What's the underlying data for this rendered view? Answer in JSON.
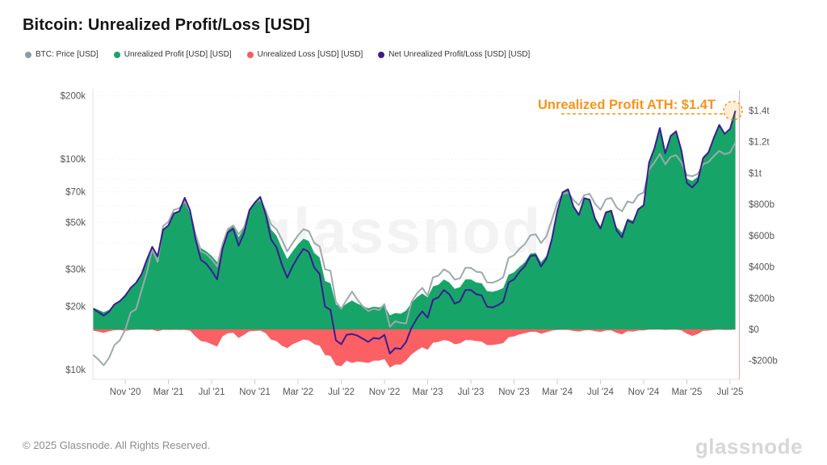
{
  "page": {
    "title": "Bitcoin: Unrealized Profit/Loss [USD]",
    "watermark": "glassnode",
    "footer_left": "© 2025 Glassnode. All Rights Reserved.",
    "footer_logo": "glassnode"
  },
  "legend": [
    {
      "label": "BTC: Price [USD]",
      "color": "#8E9BA1"
    },
    {
      "label": "Unrealized Profit [USD] [USD]",
      "color": "#17A469"
    },
    {
      "label": "Unrealized Loss [USD] [USD]",
      "color": "#FA5B5E"
    },
    {
      "label": "Net Unrealized Profit/Loss [USD] [USD]",
      "color": "#3A1D8F"
    }
  ],
  "annotation": {
    "text": "Unrealized Profit ATH: $1.4T",
    "color": "#F7931A",
    "value_b": 1400
  },
  "colors": {
    "price_line": "#9FA9AD",
    "profit_fill": "#17A469",
    "loss_fill": "#FA6064",
    "net_line": "#3A1D8F",
    "grid": "#EBEBEB",
    "axis_text": "#555555",
    "axis_line": "#E3E3E3",
    "tick": "#CFCFCF",
    "cursor_line": "#F7A6A6",
    "watermark": "#111111"
  },
  "chart_data": {
    "type": "area+line",
    "title": "Bitcoin: Unrealized Profit/Loss [USD]",
    "x_unit": "months since Aug 2020 (step 0.5, Aug '20 → mid-Jul '25)",
    "x_start": 0,
    "x_step": 0.5,
    "x_tick_labels": [
      "Nov '20",
      "Mar '21",
      "Jul '21",
      "Nov '21",
      "Mar '22",
      "Jul '22",
      "Nov '22",
      "Mar '23",
      "Jul '23",
      "Nov '23",
      "Mar '24",
      "Jul '24",
      "Nov '24",
      "Mar '25",
      "Jul '25"
    ],
    "x_tick_t": [
      3,
      7,
      11,
      15,
      19,
      23,
      27,
      31,
      35,
      39,
      43,
      47,
      51,
      55,
      59
    ],
    "left_axis": {
      "scale": "log",
      "unit": "USD",
      "ticks": [
        {
          "label": "$200k",
          "v": 200
        },
        {
          "label": "$100k",
          "v": 100
        },
        {
          "label": "$70k",
          "v": 70
        },
        {
          "label": "$50k",
          "v": 50
        },
        {
          "label": "$30k",
          "v": 30
        },
        {
          "label": "$20k",
          "v": 20
        },
        {
          "label": "$10k",
          "v": 10
        }
      ],
      "minor_grid": [
        20,
        30,
        40,
        50,
        60,
        70,
        80,
        90,
        100,
        200
      ]
    },
    "right_axis": {
      "scale": "linear",
      "unit": "USD billions",
      "ticks": [
        {
          "label": "$1.4t",
          "v": 1400
        },
        {
          "label": "$1.2t",
          "v": 1200
        },
        {
          "label": "$1t",
          "v": 1000
        },
        {
          "label": "$800b",
          "v": 800
        },
        {
          "label": "$600b",
          "v": 600
        },
        {
          "label": "$400b",
          "v": 400
        },
        {
          "label": "$200b",
          "v": 200
        },
        {
          "label": "$0",
          "v": 0
        },
        {
          "label": "-$200b",
          "v": -200
        }
      ]
    },
    "series": [
      {
        "name": "BTC: Price [USD]",
        "axis": "left",
        "type": "line",
        "unit": "$k",
        "values": [
          11.8,
          11.2,
          10.5,
          11.4,
          13.1,
          13.8,
          15.5,
          18.7,
          19.4,
          23.8,
          29.0,
          37.5,
          32.5,
          48.0,
          50.5,
          57.5,
          58.5,
          63.0,
          56.5,
          44.0,
          36.5,
          35.5,
          33.5,
          31.0,
          39.5,
          46.5,
          48.5,
          44.0,
          47.5,
          57.5,
          62.0,
          64.5,
          57.0,
          49.0,
          46.5,
          41.5,
          36.5,
          40.0,
          43.5,
          46.5,
          45.5,
          40.0,
          38.5,
          30.0,
          29.5,
          21.0,
          19.5,
          21.5,
          23.5,
          21.5,
          20.0,
          19.0,
          19.5,
          19.2,
          20.5,
          16.0,
          17.0,
          16.7,
          16.6,
          21.0,
          23.0,
          24.5,
          22.5,
          27.5,
          28.0,
          30.0,
          29.0,
          26.8,
          27.2,
          30.5,
          30.5,
          29.2,
          29.0,
          26.0,
          25.9,
          26.5,
          27.5,
          34.0,
          35.0,
          37.5,
          39.5,
          43.5,
          44.0,
          40.0,
          43.0,
          51.5,
          62.0,
          68.5,
          69.5,
          64.0,
          60.5,
          67.5,
          68.5,
          61.5,
          57.5,
          64.5,
          65.5,
          59.0,
          56.5,
          63.0,
          62.0,
          67.5,
          69.5,
          89.5,
          96.5,
          106.0,
          94.5,
          102.5,
          104.5,
          96.5,
          84.0,
          83.0,
          85.0,
          94.5,
          97.0,
          103.5,
          109.5,
          105.5,
          107.5,
          120.0
        ]
      },
      {
        "name": "Unrealized Profit [USD] [USD]",
        "axis": "right",
        "type": "area",
        "unit": "$b",
        "values": [
          140,
          125,
          110,
          125,
          165,
          185,
          225,
          270,
          300,
          355,
          450,
          530,
          480,
          640,
          670,
          745,
          760,
          845,
          770,
          625,
          520,
          500,
          470,
          430,
          560,
          645,
          665,
          590,
          650,
          775,
          820,
          855,
          760,
          640,
          600,
          520,
          450,
          500,
          545,
          580,
          565,
          490,
          460,
          310,
          295,
          160,
          140,
          165,
          185,
          165,
          150,
          135,
          145,
          140,
          155,
          90,
          105,
          100,
          120,
          170,
          205,
          230,
          205,
          275,
          285,
          320,
          300,
          260,
          270,
          320,
          320,
          300,
          295,
          245,
          240,
          250,
          265,
          350,
          365,
          400,
          430,
          485,
          490,
          430,
          470,
          585,
          760,
          880,
          900,
          795,
          745,
          845,
          835,
          720,
          660,
          755,
          765,
          655,
          620,
          710,
          695,
          775,
          800,
          1070,
          1160,
          1290,
          1130,
          1240,
          1270,
          1150,
          965,
          950,
          975,
          1105,
          1140,
          1230,
          1310,
          1255,
          1285,
          1400
        ]
      },
      {
        "name": "Unrealized Loss [USD] [USD]",
        "axis": "right",
        "type": "area",
        "unit": "$b",
        "values": [
          -8,
          -14,
          -22,
          -12,
          -5,
          -4,
          -10,
          -4,
          -2,
          -2,
          -3,
          -2,
          -12,
          -3,
          -4,
          -3,
          -4,
          -3,
          -8,
          -45,
          -75,
          -80,
          -95,
          -110,
          -45,
          -25,
          -22,
          -55,
          -35,
          -12,
          -10,
          -8,
          -25,
          -65,
          -75,
          -105,
          -120,
          -95,
          -80,
          -65,
          -70,
          -95,
          -105,
          -165,
          -170,
          -230,
          -235,
          -200,
          -215,
          -205,
          -210,
          -215,
          -200,
          -200,
          -190,
          -245,
          -225,
          -225,
          -200,
          -160,
          -135,
          -115,
          -130,
          -85,
          -80,
          -68,
          -75,
          -95,
          -90,
          -68,
          -68,
          -75,
          -78,
          -100,
          -100,
          -95,
          -88,
          -50,
          -45,
          -32,
          -25,
          -16,
          -15,
          -28,
          -18,
          -8,
          -4,
          -3,
          -3,
          -10,
          -14,
          -6,
          -5,
          -12,
          -16,
          -7,
          -6,
          -22,
          -32,
          -12,
          -14,
          -7,
          -6,
          -2,
          -2,
          -1,
          -4,
          -2,
          -2,
          -6,
          -28,
          -42,
          -30,
          -10,
          -8,
          -4,
          -2,
          -4,
          -3,
          -1
        ]
      },
      {
        "name": "Net Unrealized Profit/Loss [USD] [USD]",
        "axis": "right",
        "type": "line",
        "unit": "$b",
        "values": [
          132,
          111,
          88,
          113,
          160,
          181,
          215,
          266,
          298,
          353,
          447,
          528,
          468,
          637,
          666,
          742,
          756,
          842,
          762,
          580,
          445,
          420,
          375,
          320,
          515,
          620,
          643,
          535,
          615,
          763,
          810,
          847,
          735,
          575,
          525,
          415,
          330,
          405,
          465,
          515,
          495,
          395,
          355,
          145,
          125,
          -70,
          -95,
          -35,
          -30,
          -40,
          -60,
          -80,
          -55,
          -60,
          -35,
          -155,
          -120,
          -125,
          -80,
          10,
          70,
          115,
          75,
          190,
          205,
          252,
          225,
          165,
          180,
          252,
          252,
          225,
          217,
          145,
          140,
          155,
          177,
          300,
          320,
          368,
          405,
          469,
          475,
          402,
          452,
          577,
          756,
          877,
          897,
          785,
          731,
          839,
          830,
          708,
          644,
          748,
          759,
          633,
          588,
          698,
          681,
          768,
          794,
          1068,
          1158,
          1289,
          1126,
          1238,
          1268,
          1144,
          937,
          908,
          945,
          1095,
          1132,
          1226,
          1308,
          1251,
          1282,
          1399
        ]
      }
    ]
  }
}
